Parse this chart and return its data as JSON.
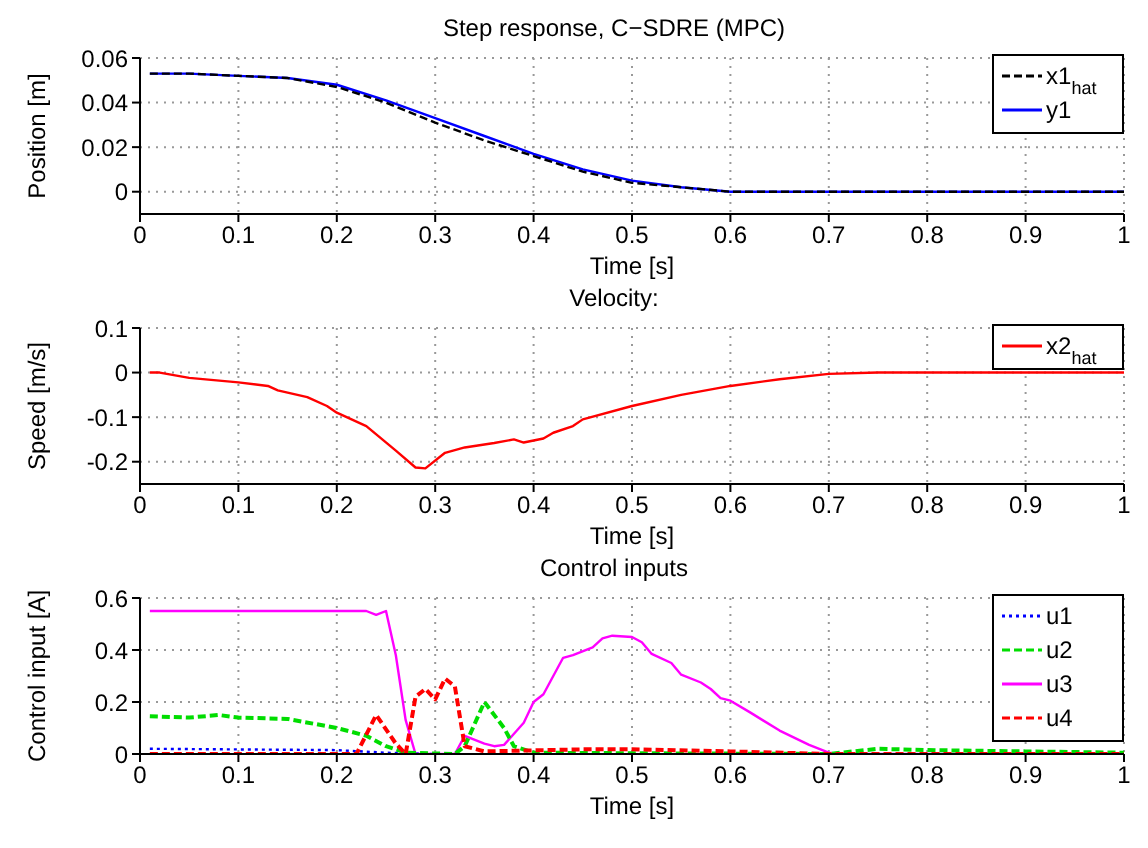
{
  "chart_data": [
    {
      "type": "line",
      "title": "Step response, C−SDRE (MPC)",
      "xlabel": "Time [s]",
      "ylabel": "Position [m]",
      "xlim": [
        0,
        1
      ],
      "xticks": [
        0,
        0.1,
        0.2,
        0.3,
        0.4,
        0.5,
        0.6,
        0.7,
        0.8,
        0.9,
        1
      ],
      "ylim": [
        -0.01,
        0.06
      ],
      "yticks": [
        0,
        0.02,
        0.04,
        0.06
      ],
      "grid": true,
      "legend": "top right",
      "marker": "none",
      "series": [
        {
          "name": "x1$_{hat}$",
          "color": "#000000",
          "line_style": "dashed",
          "x": [
            0.01,
            0.05,
            0.1,
            0.15,
            0.2,
            0.25,
            0.3,
            0.35,
            0.4,
            0.45,
            0.5,
            0.55,
            0.6,
            0.65,
            0.7,
            1.0
          ],
          "values": [
            0.053,
            0.053,
            0.052,
            0.051,
            0.047,
            0.04,
            0.031,
            0.023,
            0.016,
            0.009,
            0.004,
            0.002,
            0,
            0,
            0,
            0
          ]
        },
        {
          "name": "y1",
          "color": "#0000ff",
          "line_style": "solid",
          "x": [
            0.01,
            0.05,
            0.1,
            0.15,
            0.2,
            0.25,
            0.3,
            0.35,
            0.4,
            0.45,
            0.5,
            0.55,
            0.6,
            0.65,
            0.7,
            1.0
          ],
          "values": [
            0.053,
            0.053,
            0.052,
            0.051,
            0.048,
            0.041,
            0.033,
            0.025,
            0.017,
            0.01,
            0.005,
            0.002,
            0,
            0,
            0,
            0
          ]
        }
      ]
    },
    {
      "type": "line",
      "title": "Velocity:",
      "xlabel": "Time [s]",
      "ylabel": "Speed [m/s]",
      "xlim": [
        0,
        1
      ],
      "xticks": [
        0,
        0.1,
        0.2,
        0.3,
        0.4,
        0.5,
        0.6,
        0.7,
        0.8,
        0.9,
        1
      ],
      "ylim": [
        -0.25,
        0.1
      ],
      "yticks": [
        -0.2,
        -0.1,
        0,
        0.1
      ],
      "grid": true,
      "legend": "top right",
      "marker": "none",
      "series": [
        {
          "name": "x2$_{hat}$",
          "color": "#ff0000",
          "line_style": "solid",
          "x": [
            0.01,
            0.02,
            0.05,
            0.1,
            0.13,
            0.14,
            0.17,
            0.19,
            0.2,
            0.23,
            0.26,
            0.28,
            0.29,
            0.31,
            0.33,
            0.36,
            0.38,
            0.39,
            0.41,
            0.42,
            0.44,
            0.45,
            0.5,
            0.55,
            0.6,
            0.65,
            0.7,
            0.75,
            0.8,
            1.0
          ],
          "values": [
            0,
            0,
            -0.012,
            -0.022,
            -0.03,
            -0.04,
            -0.055,
            -0.075,
            -0.09,
            -0.12,
            -0.175,
            -0.213,
            -0.215,
            -0.18,
            -0.168,
            -0.158,
            -0.15,
            -0.157,
            -0.148,
            -0.135,
            -0.12,
            -0.105,
            -0.075,
            -0.05,
            -0.03,
            -0.015,
            -0.003,
            0,
            0,
            0
          ]
        }
      ]
    },
    {
      "type": "line",
      "title": "Control inputs",
      "xlabel": "Time [s]",
      "ylabel": "Control input [A]",
      "xlim": [
        0,
        1
      ],
      "xticks": [
        0,
        0.1,
        0.2,
        0.3,
        0.4,
        0.5,
        0.6,
        0.7,
        0.8,
        0.9,
        1
      ],
      "ylim": [
        0,
        0.6
      ],
      "yticks": [
        0,
        0.2,
        0.4,
        0.6
      ],
      "grid": true,
      "legend": "top right",
      "marker": "none",
      "series": [
        {
          "name": "u1",
          "color": "#0000ff",
          "line_style": "dotted",
          "x": [
            0.01,
            0.2,
            0.25,
            0.3
          ],
          "values": [
            0.02,
            0.015,
            0.005,
            0
          ]
        },
        {
          "name": "u2",
          "color": "#00dd00",
          "line_style": "dashed",
          "x": [
            0.01,
            0.05,
            0.08,
            0.1,
            0.15,
            0.2,
            0.23,
            0.25,
            0.27,
            0.32,
            0.33,
            0.35,
            0.37,
            0.38,
            0.4,
            0.5,
            0.7,
            0.75,
            0.8,
            0.9,
            1.0
          ],
          "values": [
            0.145,
            0.14,
            0.15,
            0.14,
            0.135,
            0.1,
            0.07,
            0.03,
            0.005,
            0,
            0.03,
            0.2,
            0.1,
            0.03,
            0.005,
            0.003,
            0,
            0.02,
            0.015,
            0.01,
            0.005
          ]
        },
        {
          "name": "u3",
          "color": "#ff00ff",
          "line_style": "solid",
          "x": [
            0.01,
            0.23,
            0.24,
            0.25,
            0.26,
            0.27,
            0.28,
            0.32,
            0.33,
            0.35,
            0.36,
            0.37,
            0.39,
            0.4,
            0.41,
            0.42,
            0.43,
            0.44,
            0.46,
            0.47,
            0.48,
            0.5,
            0.51,
            0.52,
            0.54,
            0.55,
            0.57,
            0.58,
            0.59,
            0.6,
            0.62,
            0.65,
            0.68,
            0.7,
            0.71,
            1.0
          ],
          "values": [
            0.55,
            0.55,
            0.535,
            0.55,
            0.38,
            0.13,
            0,
            0,
            0.07,
            0.04,
            0.03,
            0.035,
            0.12,
            0.2,
            0.23,
            0.3,
            0.37,
            0.38,
            0.41,
            0.445,
            0.455,
            0.45,
            0.43,
            0.385,
            0.35,
            0.305,
            0.275,
            0.25,
            0.215,
            0.205,
            0.16,
            0.09,
            0.035,
            0.005,
            0,
            0
          ]
        },
        {
          "name": "u4",
          "color": "#ff0000",
          "line_style": "dashed",
          "x": [
            0.01,
            0.22,
            0.24,
            0.26,
            0.27,
            0.28,
            0.29,
            0.3,
            0.31,
            0.32,
            0.33,
            0.35,
            0.45,
            0.5,
            0.6,
            0.7,
            1.0
          ],
          "values": [
            0,
            0,
            0.15,
            0.04,
            0,
            0.22,
            0.25,
            0.21,
            0.29,
            0.26,
            0.03,
            0.01,
            0.018,
            0.018,
            0.01,
            0,
            0
          ]
        }
      ]
    }
  ]
}
